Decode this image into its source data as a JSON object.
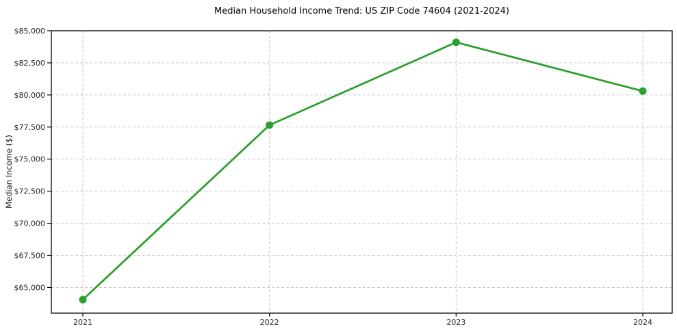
{
  "chart_data": {
    "type": "line",
    "title": "Median Household Income Trend: US ZIP Code 74604 (2021-2024)",
    "xlabel": "",
    "ylabel": "Median Income ($)",
    "categories": [
      "2021",
      "2022",
      "2023",
      "2024"
    ],
    "series": [
      {
        "name": "Median Household Income",
        "values": [
          64050,
          77650,
          84100,
          80300
        ],
        "color": "#2ca02c",
        "marker": "circle"
      }
    ],
    "ylim": [
      63000,
      85000
    ],
    "yticks": [
      65000,
      67500,
      70000,
      72500,
      75000,
      77500,
      80000,
      82500,
      85000
    ],
    "ytick_labels": [
      "$65,000",
      "$67,500",
      "$70,000",
      "$72,500",
      "$75,000",
      "$77,500",
      "$80,000",
      "$82,500",
      "$85,000"
    ],
    "xtick_labels": [
      "2021",
      "2022",
      "2023",
      "2024"
    ],
    "grid": true,
    "grid_style": "dashed",
    "legend_position": "none",
    "colors": {
      "line": "#2ca02c",
      "grid": "#c9c9c9",
      "spine": "#000000",
      "tick_text": "#262626",
      "title_text": "#000000",
      "background": "#ffffff"
    }
  }
}
